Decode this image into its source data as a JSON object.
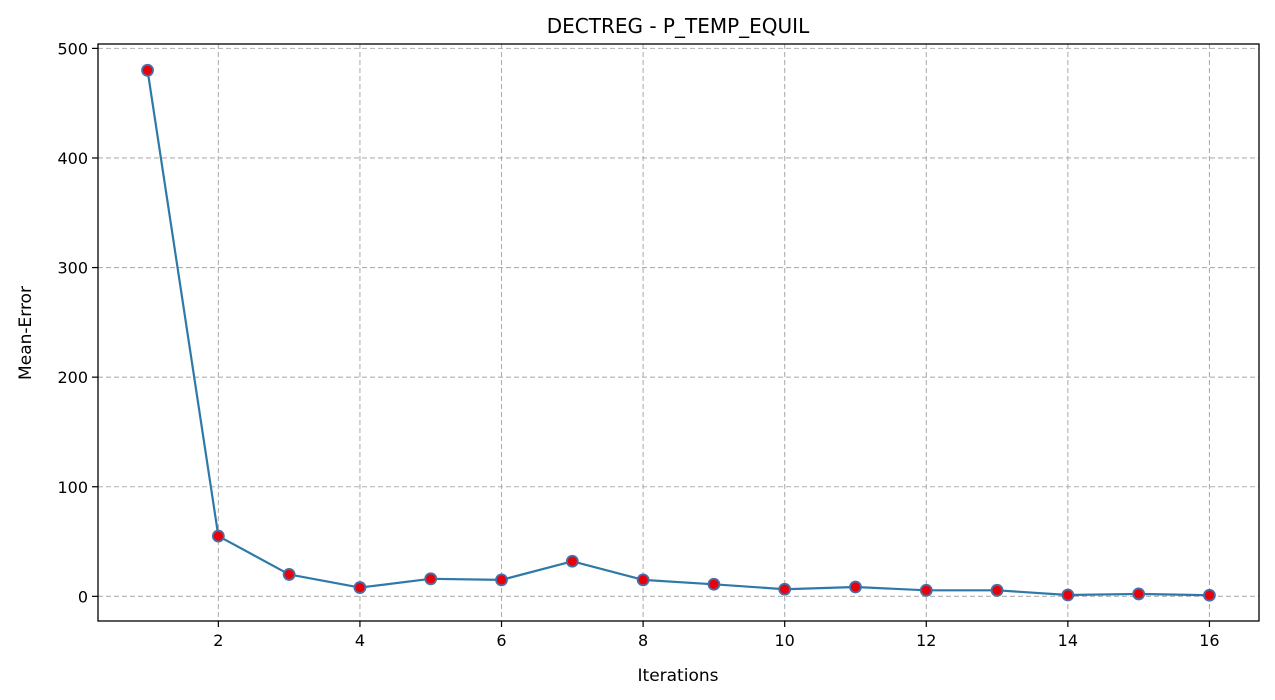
{
  "chart_data": {
    "type": "line",
    "title": "DECTREG - P_TEMP_EQUIL",
    "xlabel": "Iterations",
    "ylabel": "Mean-Error",
    "x": [
      1,
      2,
      3,
      4,
      5,
      6,
      7,
      8,
      9,
      10,
      11,
      12,
      13,
      14,
      15,
      16
    ],
    "series": [
      {
        "values": [
          480,
          55,
          20,
          8,
          16,
          15,
          32,
          15,
          11,
          6.5,
          8.5,
          5.5,
          5.5,
          1.2,
          2.2,
          1.0
        ],
        "line_color": "#2e79a8",
        "marker_face": "#e8000b",
        "marker_edge": "#4a6fa5"
      }
    ],
    "xlim": [
      0.3,
      16.7
    ],
    "ylim": [
      -22.5,
      504
    ],
    "xticks": [
      2,
      4,
      6,
      8,
      10,
      12,
      14,
      16
    ],
    "yticks": [
      0,
      100,
      200,
      300,
      400,
      500
    ],
    "grid": true,
    "legend": "none"
  }
}
